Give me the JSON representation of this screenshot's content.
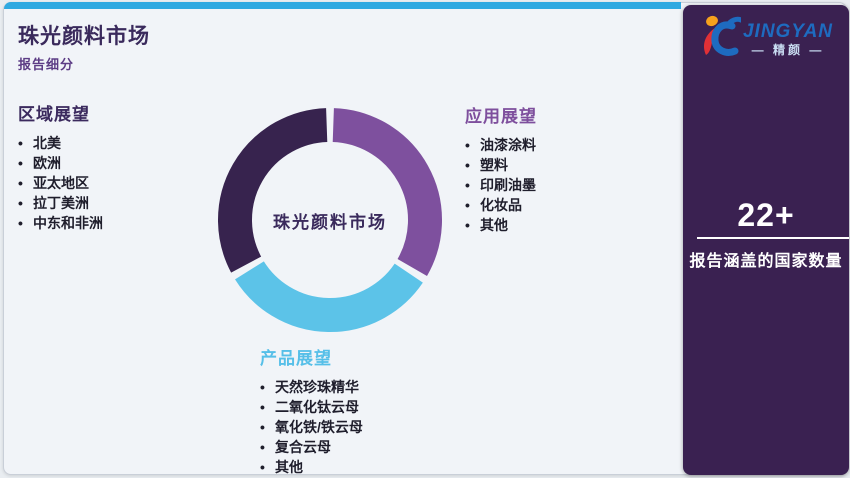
{
  "page": {
    "title": "珠光颜料市场",
    "subtitle": "报告细分"
  },
  "chart_data": {
    "type": "donut",
    "title": "珠光颜料市场",
    "center_label": "珠光颜料市场",
    "outer_radius": 112,
    "inner_radius": 78,
    "segments": [
      {
        "label": "应用展望",
        "start_deg": 2,
        "end_deg": 120,
        "color": "#7e509e"
      },
      {
        "label": "产品展望",
        "start_deg": 124,
        "end_deg": 238,
        "color": "#5cc3e8"
      },
      {
        "label": "区域展望",
        "start_deg": 242,
        "end_deg": 358,
        "color": "#37234e"
      }
    ]
  },
  "lists": {
    "region": {
      "heading": "区域展望",
      "heading_color": "#3b2a5e",
      "items": [
        "北美",
        "欧洲",
        "亚太地区",
        "拉丁美洲",
        "中东和非洲"
      ]
    },
    "application": {
      "heading": "应用展望",
      "heading_color": "#7e4f9d",
      "items": [
        "油漆涂料",
        "塑料",
        "印刷油墨",
        "化妆品",
        "其他"
      ]
    },
    "product": {
      "heading": "产品展望",
      "heading_color": "#56bfe8",
      "items": [
        "天然珍珠精华",
        "二氧化钛云母",
        "氧化铁/铁云母",
        "复合云母",
        "其他"
      ]
    }
  },
  "sidebar": {
    "stat_value": "22+",
    "stat_label": "报告涵盖的国家数量",
    "logo": {
      "brand": "JINGYAN",
      "brand_cn": "— 精颜 —"
    }
  },
  "colors": {
    "topbar_blue": "#2fa9e1",
    "sidebar_purple": "#3a2151",
    "card_bg": "#f1f4f8",
    "title_dark_purple": "#3a2a5c",
    "subtitle_purple": "#5c3c85",
    "logo_blue": "#1e6bc0",
    "logo_red": "#e03036",
    "logo_orange": "#f6a21d"
  }
}
